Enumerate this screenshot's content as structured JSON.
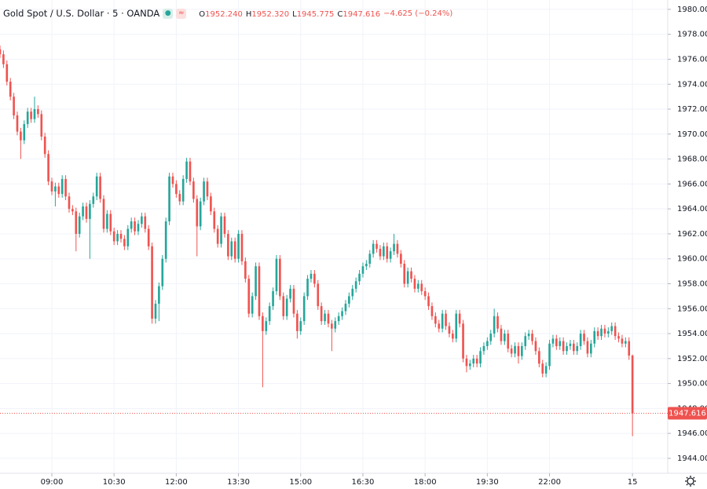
{
  "chart_data": {
    "type": "candlestick",
    "title": "Gold Spot / U.S. Dollar · 5 · OANDA",
    "ohlc_legend": [
      {
        "key": "O",
        "value": "1952.240"
      },
      {
        "key": "H",
        "value": "1952.320"
      },
      {
        "key": "L",
        "value": "1945.775"
      },
      {
        "key": "C",
        "value": "1947.616"
      }
    ],
    "change": "−4.625 (−0.24%)",
    "up_color": "#26a69a",
    "down_color": "#ef5350",
    "open": [
      1976.8,
      1976.4,
      1975.6,
      1974.2,
      1973.0,
      1971.5,
      1970.2,
      1969.5,
      1970.8,
      1971.8,
      1971.2,
      1972.0,
      1971.6,
      1969.8,
      1968.4,
      1966.2,
      1965.4,
      1965.8,
      1965.2,
      1966.4,
      1965.0,
      1964.0,
      1963.8,
      1962.0,
      1963.4,
      1964.2,
      1963.2,
      1964.4,
      1965.0,
      1966.6,
      1964.8,
      1962.4,
      1963.6,
      1962.2,
      1961.4,
      1962.0,
      1961.6,
      1961.0,
      1962.4,
      1963.0,
      1962.2,
      1962.8,
      1963.4,
      1962.4,
      1961.0,
      1955.2,
      1956.4,
      1957.8,
      1960.0,
      1963.0,
      1966.6,
      1966.0,
      1965.2,
      1964.6,
      1966.4,
      1967.8,
      1966.2,
      1964.8,
      1962.6,
      1964.6,
      1966.2,
      1965.0,
      1963.8,
      1962.4,
      1961.2,
      1963.4,
      1962.0,
      1960.2,
      1961.4,
      1960.0,
      1962.0,
      1959.8,
      1958.4,
      1955.6,
      1957.0,
      1959.4,
      1955.4,
      1954.2,
      1955.0,
      1956.2,
      1957.4,
      1960.0,
      1957.0,
      1955.4,
      1956.8,
      1957.6,
      1955.6,
      1954.2,
      1955.0,
      1957.0,
      1958.4,
      1958.8,
      1958.0,
      1956.2,
      1955.0,
      1955.6,
      1954.8,
      1954.4,
      1955.0,
      1955.4,
      1955.8,
      1956.4,
      1957.0,
      1957.6,
      1958.2,
      1958.8,
      1959.4,
      1959.6,
      1960.4,
      1961.2,
      1960.8,
      1960.2,
      1961.0,
      1960.0,
      1960.6,
      1961.2,
      1960.4,
      1959.6,
      1958.0,
      1959.0,
      1958.4,
      1957.6,
      1958.0,
      1957.4,
      1957.0,
      1956.2,
      1955.4,
      1954.8,
      1954.4,
      1955.6,
      1954.6,
      1954.0,
      1953.6,
      1955.6,
      1954.8,
      1952.0,
      1951.4,
      1951.6,
      1952.0,
      1951.6,
      1952.6,
      1953.0,
      1953.4,
      1954.0,
      1955.4,
      1954.4,
      1953.4,
      1954.0,
      1952.8,
      1952.4,
      1953.0,
      1952.2,
      1953.0,
      1953.8,
      1954.0,
      1953.4,
      1952.6,
      1951.6,
      1950.8,
      1951.4,
      1953.2,
      1953.6,
      1953.0,
      1953.4,
      1952.6,
      1953.0,
      1953.2,
      1952.6,
      1953.0,
      1954.0,
      1953.4,
      1952.4,
      1953.2,
      1954.2,
      1953.8,
      1954.4,
      1954.0,
      1954.2,
      1954.6,
      1953.8,
      1953.6,
      1953.2,
      1953.4,
      1952.24
    ],
    "high": [
      1977.1,
      1976.7,
      1975.9,
      1974.5,
      1973.3,
      1971.8,
      1970.5,
      1971.1,
      1972.1,
      1972.1,
      1973.0,
      1972.3,
      1971.9,
      1970.1,
      1968.7,
      1966.5,
      1966.1,
      1966.1,
      1966.7,
      1966.7,
      1965.3,
      1964.3,
      1964.1,
      1963.7,
      1964.5,
      1964.5,
      1964.7,
      1965.3,
      1966.9,
      1966.9,
      1965.1,
      1963.9,
      1963.9,
      1962.5,
      1962.3,
      1962.3,
      1961.9,
      1962.7,
      1963.3,
      1963.3,
      1963.1,
      1963.7,
      1963.7,
      1962.7,
      1961.3,
      1956.7,
      1958.1,
      1960.3,
      1963.3,
      1966.9,
      1966.9,
      1966.3,
      1965.5,
      1966.7,
      1968.1,
      1968.1,
      1966.5,
      1965.1,
      1964.9,
      1966.5,
      1966.5,
      1965.3,
      1964.1,
      1962.7,
      1963.7,
      1963.7,
      1962.3,
      1961.7,
      1961.7,
      1962.3,
      1962.3,
      1960.1,
      1958.7,
      1957.3,
      1959.7,
      1959.7,
      1955.7,
      1955.3,
      1956.5,
      1957.7,
      1960.3,
      1960.3,
      1957.3,
      1957.1,
      1957.9,
      1957.9,
      1955.9,
      1955.3,
      1957.3,
      1958.7,
      1959.1,
      1959.1,
      1958.3,
      1956.5,
      1955.9,
      1955.9,
      1955.1,
      1955.3,
      1955.7,
      1956.1,
      1956.7,
      1957.3,
      1957.9,
      1958.5,
      1959.1,
      1959.7,
      1959.9,
      1960.7,
      1961.5,
      1961.5,
      1961.1,
      1961.3,
      1961.3,
      1960.9,
      1962.0,
      1961.5,
      1960.7,
      1959.9,
      1959.3,
      1959.3,
      1958.7,
      1958.3,
      1958.3,
      1957.7,
      1957.3,
      1956.5,
      1955.7,
      1955.1,
      1955.9,
      1955.9,
      1954.9,
      1954.3,
      1955.9,
      1955.9,
      1955.1,
      1952.3,
      1951.9,
      1952.3,
      1952.3,
      1952.9,
      1953.3,
      1953.7,
      1954.3,
      1956.0,
      1955.7,
      1954.7,
      1954.3,
      1954.3,
      1953.1,
      1953.3,
      1953.3,
      1953.3,
      1954.1,
      1954.3,
      1954.3,
      1953.7,
      1952.9,
      1951.9,
      1951.7,
      1953.5,
      1953.9,
      1953.9,
      1953.7,
      1953.7,
      1953.3,
      1953.5,
      1953.5,
      1953.3,
      1954.3,
      1954.3,
      1953.7,
      1953.5,
      1954.5,
      1954.5,
      1954.7,
      1954.7,
      1954.5,
      1954.9,
      1954.9,
      1954.1,
      1953.9,
      1953.7,
      1953.7,
      1952.32
    ],
    "low": [
      1976.1,
      1975.3,
      1973.9,
      1972.7,
      1971.2,
      1969.9,
      1968.0,
      1969.2,
      1970.5,
      1970.9,
      1970.9,
      1971.3,
      1969.5,
      1968.1,
      1965.9,
      1965.1,
      1964.2,
      1964.9,
      1964.9,
      1964.7,
      1963.7,
      1963.5,
      1960.6,
      1961.7,
      1963.1,
      1962.9,
      1960.0,
      1964.1,
      1964.7,
      1964.5,
      1962.1,
      1962.1,
      1961.9,
      1961.1,
      1961.1,
      1961.3,
      1960.7,
      1960.7,
      1962.1,
      1961.9,
      1961.9,
      1962.5,
      1962.1,
      1960.7,
      1954.8,
      1954.8,
      1955.0,
      1957.5,
      1959.7,
      1962.7,
      1965.7,
      1964.9,
      1964.3,
      1964.3,
      1966.1,
      1965.9,
      1964.5,
      1960.2,
      1962.3,
      1964.3,
      1964.7,
      1963.5,
      1962.1,
      1960.9,
      1960.9,
      1961.7,
      1959.9,
      1959.9,
      1959.7,
      1959.7,
      1959.5,
      1958.1,
      1955.3,
      1955.3,
      1956.7,
      1955.1,
      1949.7,
      1953.9,
      1954.7,
      1955.9,
      1957.1,
      1956.7,
      1955.1,
      1955.1,
      1956.5,
      1955.3,
      1953.6,
      1953.9,
      1954.7,
      1956.7,
      1958.1,
      1957.7,
      1955.9,
      1954.7,
      1954.7,
      1954.5,
      1952.6,
      1954.1,
      1954.7,
      1955.1,
      1955.5,
      1956.1,
      1956.7,
      1957.3,
      1957.9,
      1958.5,
      1959.1,
      1959.3,
      1960.1,
      1960.5,
      1959.9,
      1959.9,
      1959.7,
      1959.7,
      1960.3,
      1960.1,
      1959.3,
      1957.7,
      1957.7,
      1958.1,
      1957.3,
      1957.3,
      1957.1,
      1956.7,
      1955.9,
      1955.1,
      1954.5,
      1954.1,
      1954.1,
      1954.3,
      1953.7,
      1953.3,
      1953.3,
      1954.5,
      1951.7,
      1950.9,
      1951.1,
      1951.3,
      1951.3,
      1951.3,
      1952.3,
      1952.7,
      1953.1,
      1953.7,
      1954.1,
      1953.1,
      1953.1,
      1952.5,
      1952.1,
      1952.1,
      1951.6,
      1951.9,
      1952.7,
      1953.5,
      1953.1,
      1952.3,
      1951.3,
      1950.5,
      1950.5,
      1951.1,
      1952.9,
      1952.7,
      1952.7,
      1952.3,
      1952.3,
      1952.7,
      1952.3,
      1952.3,
      1952.7,
      1953.1,
      1952.1,
      1952.1,
      1952.9,
      1953.5,
      1953.5,
      1953.7,
      1953.7,
      1953.9,
      1953.5,
      1953.3,
      1952.9,
      1952.9,
      1951.9,
      1945.775
    ],
    "close": [
      1976.4,
      1975.6,
      1974.2,
      1973.0,
      1971.5,
      1970.2,
      1969.5,
      1970.8,
      1971.8,
      1971.2,
      1972.0,
      1971.6,
      1969.8,
      1968.4,
      1966.2,
      1965.4,
      1965.8,
      1965.2,
      1966.4,
      1965.0,
      1964.0,
      1963.8,
      1962.0,
      1963.4,
      1964.2,
      1963.2,
      1964.4,
      1965.0,
      1966.6,
      1964.8,
      1962.4,
      1963.6,
      1962.2,
      1961.4,
      1962.0,
      1961.6,
      1961.0,
      1962.4,
      1963.0,
      1962.2,
      1962.8,
      1963.4,
      1962.4,
      1961.0,
      1955.2,
      1956.4,
      1957.8,
      1960.0,
      1963.0,
      1966.6,
      1966.0,
      1965.2,
      1964.6,
      1966.4,
      1967.8,
      1966.2,
      1964.8,
      1962.6,
      1964.6,
      1966.2,
      1965.0,
      1963.8,
      1962.4,
      1961.2,
      1963.4,
      1962.0,
      1960.2,
      1961.4,
      1960.0,
      1962.0,
      1959.8,
      1958.4,
      1955.6,
      1957.0,
      1959.4,
      1955.4,
      1954.2,
      1955.0,
      1956.2,
      1957.4,
      1960.0,
      1957.0,
      1955.4,
      1956.8,
      1957.6,
      1955.6,
      1954.2,
      1955.0,
      1957.0,
      1958.4,
      1958.8,
      1958.0,
      1956.2,
      1955.0,
      1955.6,
      1954.8,
      1954.4,
      1955.0,
      1955.4,
      1955.8,
      1956.4,
      1957.0,
      1957.6,
      1958.2,
      1958.8,
      1959.4,
      1959.6,
      1960.4,
      1961.2,
      1960.8,
      1960.2,
      1961.0,
      1960.0,
      1960.6,
      1961.2,
      1960.4,
      1959.6,
      1958.0,
      1959.0,
      1958.4,
      1957.6,
      1958.0,
      1957.4,
      1957.0,
      1956.2,
      1955.4,
      1954.8,
      1954.4,
      1955.6,
      1954.6,
      1954.0,
      1953.6,
      1955.6,
      1954.8,
      1952.0,
      1951.4,
      1951.6,
      1952.0,
      1951.6,
      1952.6,
      1953.0,
      1953.4,
      1954.0,
      1955.4,
      1954.4,
      1953.4,
      1954.0,
      1952.8,
      1952.4,
      1953.0,
      1952.2,
      1953.0,
      1953.8,
      1954.0,
      1953.4,
      1952.6,
      1951.6,
      1950.8,
      1951.4,
      1953.2,
      1953.6,
      1953.0,
      1953.4,
      1952.6,
      1953.0,
      1953.2,
      1952.6,
      1953.0,
      1954.0,
      1953.4,
      1952.4,
      1953.2,
      1954.2,
      1953.8,
      1954.4,
      1954.0,
      1954.2,
      1954.6,
      1953.8,
      1953.6,
      1953.2,
      1953.4,
      1952.24,
      1947.616
    ],
    "xlim": [
      0,
      193.2
    ],
    "xticks": [
      {
        "value": 15,
        "label": "09:00"
      },
      {
        "value": 33,
        "label": "10:30"
      },
      {
        "value": 51,
        "label": "12:00"
      },
      {
        "value": 69,
        "label": "13:30"
      },
      {
        "value": 87,
        "label": "15:00"
      },
      {
        "value": 105,
        "label": "16:30"
      },
      {
        "value": 123,
        "label": "18:00"
      },
      {
        "value": 141,
        "label": "19:30"
      },
      {
        "value": 159,
        "label": "22:00"
      },
      {
        "value": 183,
        "label": "15"
      }
    ],
    "ylim": [
      1942.8,
      1980.75
    ],
    "yticks": [
      {
        "value": 1944,
        "label": "1944.000"
      },
      {
        "value": 1946,
        "label": "1946.000"
      },
      {
        "value": 1948,
        "label": "1948.000"
      },
      {
        "value": 1950,
        "label": "1950.000"
      },
      {
        "value": 1952,
        "label": "1952.000"
      },
      {
        "value": 1954,
        "label": "1954.000"
      },
      {
        "value": 1956,
        "label": "1956.000"
      },
      {
        "value": 1958,
        "label": "1958.000"
      },
      {
        "value": 1960,
        "label": "1960.000"
      },
      {
        "value": 1962,
        "label": "1962.000"
      },
      {
        "value": 1964,
        "label": "1964.000"
      },
      {
        "value": 1966,
        "label": "1966.000"
      },
      {
        "value": 1968,
        "label": "1968.000"
      },
      {
        "value": 1970,
        "label": "1970.000"
      },
      {
        "value": 1972,
        "label": "1972.000"
      },
      {
        "value": 1974,
        "label": "1974.000"
      },
      {
        "value": 1976,
        "label": "1976.000"
      },
      {
        "value": 1978,
        "label": "1978.000"
      },
      {
        "value": 1980,
        "label": "1980.000"
      }
    ],
    "last_price": {
      "value": 1947.616,
      "label": "1947.616"
    },
    "grid": true
  }
}
